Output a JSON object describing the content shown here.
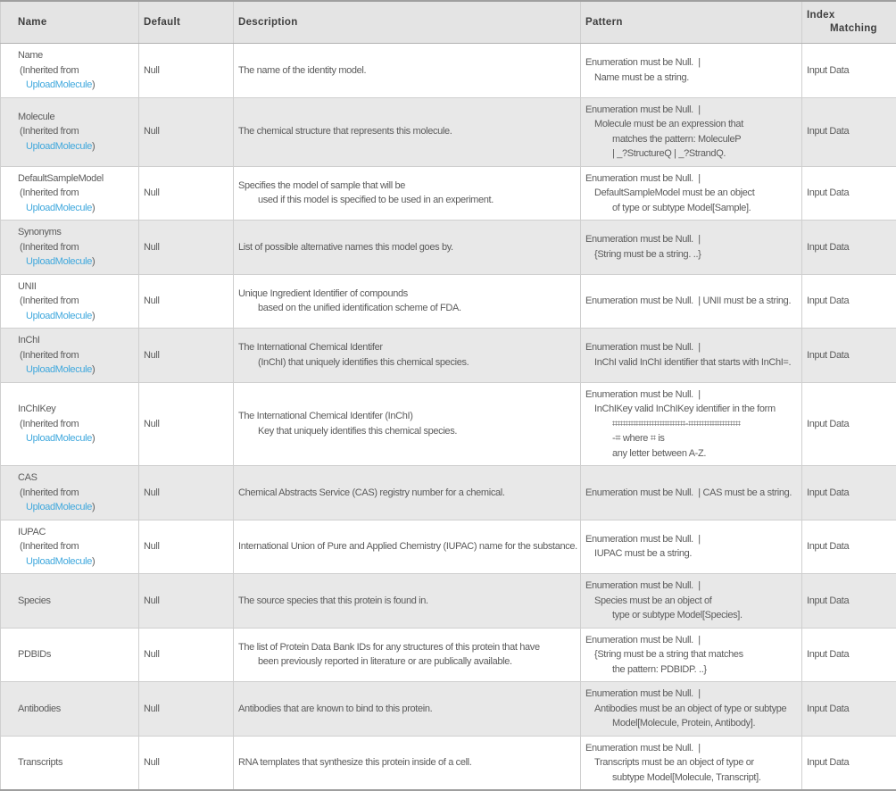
{
  "colors": {
    "link_color": "#3fa8dd",
    "header_bg": "#e4e4e4",
    "shaded_row_bg": "#e8e8e8",
    "row_bg": "#ffffff",
    "border_color": "#cfcfcf",
    "strong_border_color": "#9f9f9f",
    "text_color": "#5b5b5b",
    "header_text_color": "#3f3f3f"
  },
  "table": {
    "columns": [
      {
        "label": "Name"
      },
      {
        "label": "Default"
      },
      {
        "label": "Description"
      },
      {
        "label": "Pattern"
      },
      {
        "label": "Index",
        "label2": "Matching"
      }
    ],
    "rows": [
      {
        "name": "Name",
        "shaded": false,
        "inherited": {
          "prefix": "(Inherited from",
          "link": "UploadMolecule",
          "suffix": ")"
        },
        "default": "Null",
        "description": [
          {
            "t": "The name of the identity model.",
            "i": 0
          }
        ],
        "pattern": [
          {
            "t": "Enumeration must be Null.  |",
            "i": 0
          },
          {
            "t": "Name must be a string.",
            "i": 1
          }
        ],
        "index": "Input Data"
      },
      {
        "name": "Molecule",
        "shaded": true,
        "inherited": {
          "prefix": "(Inherited from",
          "link": "UploadMolecule",
          "suffix": ")"
        },
        "default": "Null",
        "description": [
          {
            "t": "The chemical structure that represents this molecule.",
            "i": 0
          }
        ],
        "pattern": [
          {
            "t": "Enumeration must be Null.  |",
            "i": 0
          },
          {
            "t": "Molecule must be an expression that",
            "i": 1
          },
          {
            "t": "matches the pattern: MoleculeP",
            "i": 2
          },
          {
            "t": "| _?StructureQ | _?StrandQ.",
            "i": 2
          }
        ],
        "index": "Input Data"
      },
      {
        "name": "DefaultSampleModel",
        "shaded": false,
        "inherited": {
          "prefix": "(Inherited from",
          "link": "UploadMolecule",
          "suffix": ")"
        },
        "default": "Null",
        "description": [
          {
            "t": "Specifies the model of sample that will be",
            "i": 0
          },
          {
            "t": "used if this model is specified to be used in an experiment.",
            "i": 1
          }
        ],
        "pattern": [
          {
            "t": "Enumeration must be Null.  |",
            "i": 0
          },
          {
            "t": "DefaultSampleModel must be an object",
            "i": 1
          },
          {
            "t": "of type or subtype Model[Sample].",
            "i": 2
          }
        ],
        "index": "Input Data"
      },
      {
        "name": "Synonyms",
        "shaded": true,
        "inherited": {
          "prefix": "(Inherited from",
          "link": "UploadMolecule",
          "suffix": ")"
        },
        "default": "Null",
        "description": [
          {
            "t": "List of possible alternative names this model goes by.",
            "i": 0
          }
        ],
        "pattern": [
          {
            "t": "Enumeration must be Null.  |",
            "i": 0
          },
          {
            "t": "{String must be a string. ..}",
            "i": 1
          }
        ],
        "index": "Input Data"
      },
      {
        "name": "UNII",
        "shaded": false,
        "inherited": {
          "prefix": "(Inherited from",
          "link": "UploadMolecule",
          "suffix": ")"
        },
        "default": "Null",
        "description": [
          {
            "t": "Unique Ingredient Identifier of compounds",
            "i": 0
          },
          {
            "t": "based on the unified identification scheme of FDA.",
            "i": 1
          }
        ],
        "pattern": [
          {
            "t": "Enumeration must be Null.  | UNII must be a string.",
            "i": 0
          }
        ],
        "index": "Input Data"
      },
      {
        "name": "InChI",
        "shaded": true,
        "inherited": {
          "prefix": "(Inherited from",
          "link": "UploadMolecule",
          "suffix": ")"
        },
        "default": "Null",
        "description": [
          {
            "t": "The International Chemical Identifer",
            "i": 0
          },
          {
            "t": "(InChI) that uniquely identifies this chemical species.",
            "i": 1
          }
        ],
        "pattern": [
          {
            "t": "Enumeration must be Null.  |",
            "i": 0
          },
          {
            "t": "InChI valid InChI identifier that starts with InChI=.",
            "i": 1
          }
        ],
        "index": "Input Data"
      },
      {
        "name": "InChIKey",
        "shaded": false,
        "inherited": {
          "prefix": "(Inherited from",
          "link": "UploadMolecule",
          "suffix": ")"
        },
        "default": "Null",
        "description": [
          {
            "t": "The International Chemical Identifer (InChI)",
            "i": 0
          },
          {
            "t": "Key that uniquely identifies this chemical species.",
            "i": 1
          }
        ],
        "pattern": [
          {
            "t": "Enumeration must be Null.  |",
            "i": 0
          },
          {
            "t": "InChIKey valid InChIKey identifier in the form",
            "i": 1
          },
          {
            "t": "⌗⌗⌗⌗⌗⌗⌗⌗⌗⌗⌗⌗⌗⌗-⌗⌗⌗⌗⌗⌗⌗⌗⌗⌗",
            "i": 2
          },
          {
            "t": "-⌗ where ⌗ is",
            "i": 2
          },
          {
            "t": "any letter between A-Z.",
            "i": 2
          }
        ],
        "index": "Input Data"
      },
      {
        "name": "CAS",
        "shaded": true,
        "inherited": {
          "prefix": "(Inherited from",
          "link": "UploadMolecule",
          "suffix": ")"
        },
        "default": "Null",
        "description": [
          {
            "t": "Chemical Abstracts Service (CAS) registry number for a chemical.",
            "i": 0
          }
        ],
        "pattern": [
          {
            "t": "Enumeration must be Null.  | CAS must be a string.",
            "i": 0
          }
        ],
        "index": "Input Data"
      },
      {
        "name": "IUPAC",
        "shaded": false,
        "inherited": {
          "prefix": "(Inherited from",
          "link": "UploadMolecule",
          "suffix": ")"
        },
        "default": "Null",
        "description": [
          {
            "t": "International Union of Pure and Applied Chemistry (IUPAC) name for the substance.",
            "i": 0
          }
        ],
        "pattern": [
          {
            "t": "Enumeration must be Null.  |",
            "i": 0
          },
          {
            "t": "IUPAC must be a string.",
            "i": 1
          }
        ],
        "index": "Input Data"
      },
      {
        "name": "Species",
        "shaded": true,
        "inherited": null,
        "default": "Null",
        "description": [
          {
            "t": "The source species that this protein is found in.",
            "i": 0
          }
        ],
        "pattern": [
          {
            "t": "Enumeration must be Null.  |",
            "i": 0
          },
          {
            "t": "Species must be an object of",
            "i": 1
          },
          {
            "t": "type or subtype Model[Species].",
            "i": 2
          }
        ],
        "index": "Input Data"
      },
      {
        "name": "PDBIDs",
        "shaded": false,
        "inherited": null,
        "default": "Null",
        "description": [
          {
            "t": "The list of Protein Data Bank IDs for any structures of this protein that have",
            "i": 0
          },
          {
            "t": "been previously reported in literature or are publically available.",
            "i": 1
          }
        ],
        "pattern": [
          {
            "t": "Enumeration must be Null.  |",
            "i": 0
          },
          {
            "t": "{String must be a string that matches",
            "i": 1
          },
          {
            "t": "the pattern: PDBIDP. ..}",
            "i": 2
          }
        ],
        "index": "Input Data"
      },
      {
        "name": "Antibodies",
        "shaded": true,
        "inherited": null,
        "default": "Null",
        "description": [
          {
            "t": "Antibodies that are known to bind to this protein.",
            "i": 0
          }
        ],
        "pattern": [
          {
            "t": "Enumeration must be Null.  |",
            "i": 0
          },
          {
            "t": "Antibodies must be an object of type or subtype",
            "i": 1
          },
          {
            "t": "Model[Molecule, Protein, Antibody].",
            "i": 2
          }
        ],
        "index": "Input Data"
      },
      {
        "name": "Transcripts",
        "shaded": false,
        "inherited": null,
        "default": "Null",
        "description": [
          {
            "t": "RNA templates that synthesize this protein inside of a cell.",
            "i": 0
          }
        ],
        "pattern": [
          {
            "t": "Enumeration must be Null.  |",
            "i": 0
          },
          {
            "t": "Transcripts must be an object of type or",
            "i": 1
          },
          {
            "t": "subtype Model[Molecule, Transcript].",
            "i": 2
          }
        ],
        "index": "Input Data"
      }
    ]
  }
}
